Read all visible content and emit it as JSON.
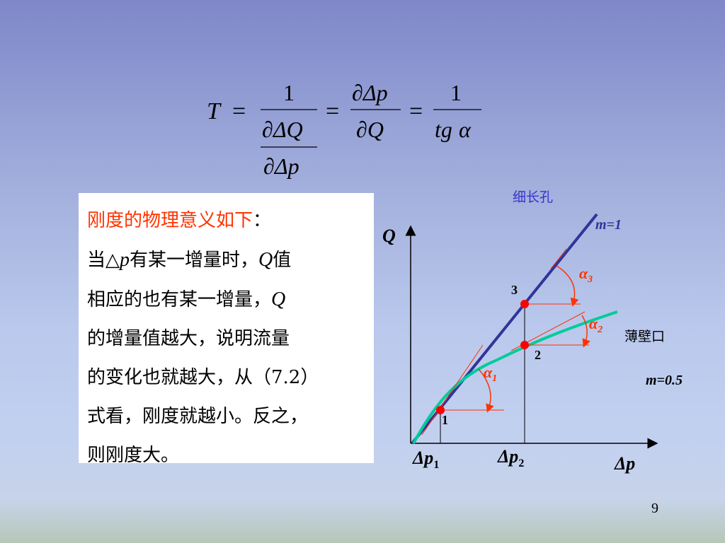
{
  "formula": {
    "lhs": "T",
    "eq": "=",
    "num1": "1",
    "den1_num": "∂ΔQ",
    "den1_den": "∂Δp",
    "num2": "∂Δp",
    "den2": "∂Q",
    "num3": "1",
    "den3_tg": "tg",
    "den3_alpha": "α"
  },
  "explanation": {
    "heading_red": "刚度的物理意义如下",
    "heading_colon": "：",
    "line2_a": "当△",
    "line2_p": "p",
    "line2_b": "有某一增量时，",
    "line2_Q": "Q",
    "line2_c": "值",
    "line3_a": "相应的也有某一增量，",
    "line3_Q": "Q",
    "line4": "的增量值越大，说明流量",
    "line5": "的变化也就越大，从（7.2）",
    "line6": "式看，刚度就越小。反之，",
    "line7": "则刚度大。"
  },
  "diagram": {
    "title_slender": "细长孔",
    "label_thin_wall": "薄壁口",
    "label_m1": "m=1",
    "label_m05": "m=0.5",
    "axis_y": "Q",
    "axis_x": "Δp",
    "tick_p1": "Δp",
    "tick_p1_sub": "1",
    "tick_p2": "Δp",
    "tick_p2_sub": "2",
    "point1": "1",
    "point2": "2",
    "point3": "3",
    "alpha1": "α",
    "alpha1_sub": "1",
    "alpha2": "α",
    "alpha2_sub": "2",
    "alpha3": "α",
    "alpha3_sub": "3"
  },
  "colors": {
    "line_m1": "#333399",
    "curve_m05": "#00cc99",
    "tangent_red": "#ff3300",
    "point_red": "#ff0000",
    "slender_label": "#3333cc",
    "m1_label": "#333399"
  },
  "page": {
    "number": "9"
  }
}
